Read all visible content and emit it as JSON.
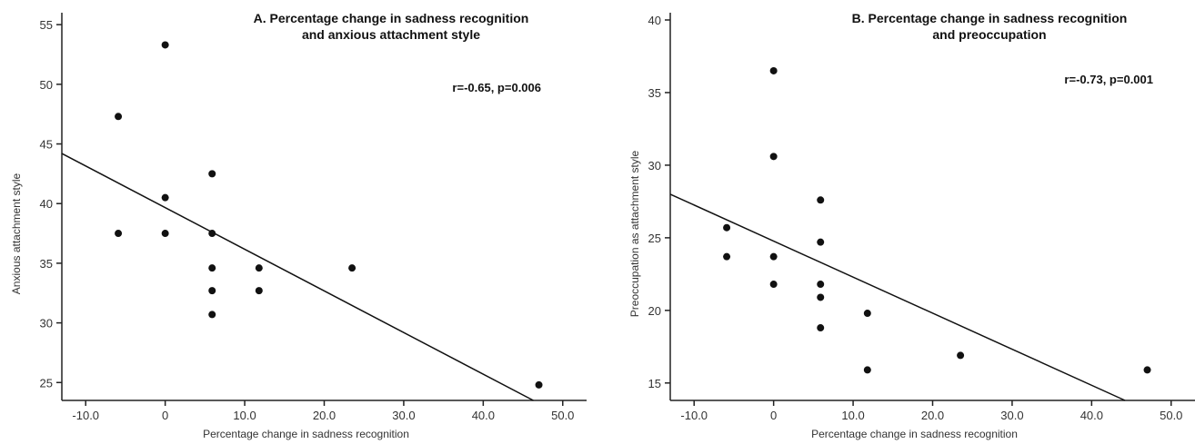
{
  "chart_data": [
    {
      "type": "scatter",
      "title": [
        "A. Percentage change in sadness recognition",
        "and anxious attachment style"
      ],
      "annotation": "r=-0.65, p=0.006",
      "xlabel": "Percentage change in sadness recognition",
      "ylabel": "Anxious attachment style",
      "xlim": [
        -13,
        53
      ],
      "ylim": [
        23.5,
        56
      ],
      "xticks": [
        -10,
        0,
        10,
        20,
        30,
        40,
        50
      ],
      "xtick_labels": [
        "-10.0",
        "0",
        "10.0",
        "20.0",
        "30.0",
        "40.0",
        "50.0"
      ],
      "yticks": [
        25,
        30,
        35,
        40,
        45,
        50,
        55
      ],
      "ytick_labels": [
        "25",
        "30",
        "35",
        "40",
        "45",
        "50",
        "55"
      ],
      "x": [
        -5.9,
        -5.9,
        0,
        0,
        0,
        5.9,
        5.9,
        5.9,
        5.9,
        5.9,
        11.8,
        11.8,
        23.5,
        47
      ],
      "y": [
        47.3,
        37.5,
        53.3,
        40.5,
        37.5,
        42.5,
        37.5,
        34.6,
        32.7,
        30.7,
        34.6,
        32.7,
        34.6,
        24.8
      ],
      "regression": {
        "x": [
          -13,
          46.3
        ],
        "y": [
          44.2,
          23.5
        ]
      },
      "grid": false,
      "legend": "none"
    },
    {
      "type": "scatter",
      "title": [
        "B. Percentage change in sadness recognition",
        "and preoccupation"
      ],
      "annotation": "r=-0.73, p=0.001",
      "xlabel": "Percentage change in sadness recognition",
      "ylabel": "Preoccupation as attachment style",
      "xlim": [
        -13,
        53
      ],
      "ylim": [
        13.8,
        40.5
      ],
      "xticks": [
        -10,
        0,
        10,
        20,
        30,
        40,
        50
      ],
      "xtick_labels": [
        "-10.0",
        "0",
        "10.0",
        "20.0",
        "30.0",
        "40.0",
        "50.0"
      ],
      "yticks": [
        15,
        20,
        25,
        30,
        35,
        40
      ],
      "ytick_labels": [
        "15",
        "20",
        "25",
        "30",
        "35",
        "40"
      ],
      "x": [
        -5.9,
        -5.9,
        0,
        0,
        0,
        0,
        5.9,
        5.9,
        5.9,
        5.9,
        5.9,
        11.8,
        11.8,
        23.5,
        47
      ],
      "y": [
        25.7,
        23.7,
        36.5,
        30.6,
        23.7,
        21.8,
        27.6,
        24.7,
        21.8,
        20.9,
        18.8,
        19.8,
        15.9,
        16.9,
        15.9
      ],
      "regression": {
        "x": [
          -13,
          44.2
        ],
        "y": [
          28,
          13.8
        ]
      },
      "grid": false,
      "legend": "none"
    }
  ]
}
